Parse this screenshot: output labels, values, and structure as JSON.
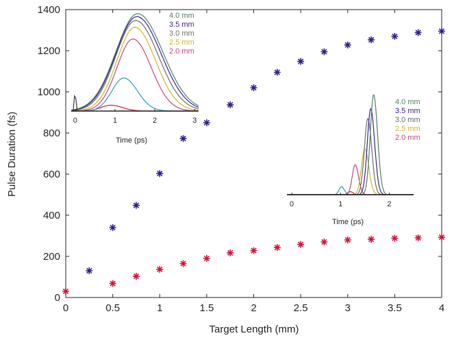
{
  "chart_data": [
    {
      "type": "scatter",
      "title": "",
      "xlabel": "Target Length (mm)",
      "ylabel": "Pulse Duration (fs)",
      "xlim": [
        0,
        4
      ],
      "ylim": [
        0,
        1400
      ],
      "xticks": [
        "0",
        "0.5",
        "1",
        "1.5",
        "2",
        "2.5",
        "3",
        "3.5",
        "4"
      ],
      "yticks": [
        "0",
        "200",
        "400",
        "600",
        "800",
        "1000",
        "1200",
        "1400"
      ],
      "grid": false,
      "marker": "asterisk",
      "series": [
        {
          "color": "#3a1e8c",
          "x": [
            0.25,
            0.5,
            0.75,
            1.0,
            1.25,
            1.5,
            1.75,
            2.0,
            2.25,
            2.5,
            2.75,
            3.0,
            3.25,
            3.5,
            3.75,
            4.0
          ],
          "y": [
            130,
            340,
            448,
            603,
            773,
            850,
            937,
            1020,
            1095,
            1148,
            1195,
            1228,
            1253,
            1270,
            1288,
            1295
          ]
        },
        {
          "color": "#d4143c",
          "x": [
            0,
            0.5,
            0.75,
            1.0,
            1.25,
            1.5,
            1.75,
            2.0,
            2.25,
            2.5,
            2.75,
            3.0,
            3.25,
            3.5,
            3.75,
            4.0
          ],
          "y": [
            30,
            68,
            103,
            137,
            165,
            190,
            217,
            228,
            243,
            258,
            270,
            280,
            283,
            288,
            290,
            293
          ]
        }
      ]
    },
    {
      "type": "line",
      "xlabel": "Time (ps)",
      "xticks": [
        "0",
        "1",
        "2",
        "3"
      ],
      "xlim": [
        -0.1,
        3.1
      ],
      "legend": [
        "4.0 mm",
        "3.5 mm",
        "3.0 mm",
        "2.5 mm",
        "2.0 mm"
      ],
      "legend_colors": [
        "#4f7f5e",
        "#3a1e8c",
        "#6a6a6a",
        "#c9b52a",
        "#c2467a"
      ],
      "series": [
        {
          "color": "#4f7f5e",
          "peak_x": 1.57,
          "amp": 1.0,
          "width": 0.55
        },
        {
          "color": "#3a1e8c",
          "peak_x": 1.55,
          "amp": 0.97,
          "width": 0.53
        },
        {
          "color": "#6a6a6a",
          "peak_x": 1.52,
          "amp": 0.93,
          "width": 0.5
        },
        {
          "color": "#c9b52a",
          "peak_x": 1.5,
          "amp": 0.86,
          "width": 0.45
        },
        {
          "color": "#c2467a",
          "peak_x": 1.45,
          "amp": 0.74,
          "width": 0.4
        },
        {
          "color": "#2a9ab8",
          "peak_x": 1.22,
          "amp": 0.34,
          "width": 0.3
        },
        {
          "color": "#d4143c",
          "peak_x": 0.9,
          "amp": 0.06,
          "width": 0.25
        }
      ]
    },
    {
      "type": "line",
      "xlabel": "Time (ps)",
      "xticks": [
        "0",
        "1",
        "2"
      ],
      "xlim": [
        -0.1,
        2.5
      ],
      "legend": [
        "4.0 mm",
        "3.5 mm",
        "3.0 mm",
        "2.5 mm",
        "2.0 mm"
      ],
      "legend_colors": [
        "#4f7f5e",
        "#3a1e8c",
        "#6a6a6a",
        "#c9b52a",
        "#c2467a"
      ],
      "series": [
        {
          "color": "#4f7f5e",
          "peak_x": 1.68,
          "amp": 1.0,
          "width": 0.07
        },
        {
          "color": "#3a1e8c",
          "peak_x": 1.62,
          "amp": 0.86,
          "width": 0.07
        },
        {
          "color": "#6a6a6a",
          "peak_x": 1.56,
          "amp": 0.76,
          "width": 0.07
        },
        {
          "color": "#c9b52a",
          "peak_x": 1.5,
          "amp": 0.46,
          "width": 0.07
        },
        {
          "color": "#c2467a",
          "peak_x": 1.3,
          "amp": 0.3,
          "width": 0.06
        },
        {
          "color": "#2a9ab8",
          "peak_x": 1.02,
          "amp": 0.08,
          "width": 0.05
        },
        {
          "color": "#d4143c",
          "peak_x": 1.2,
          "amp": 0.03,
          "width": 0.05
        }
      ]
    }
  ]
}
